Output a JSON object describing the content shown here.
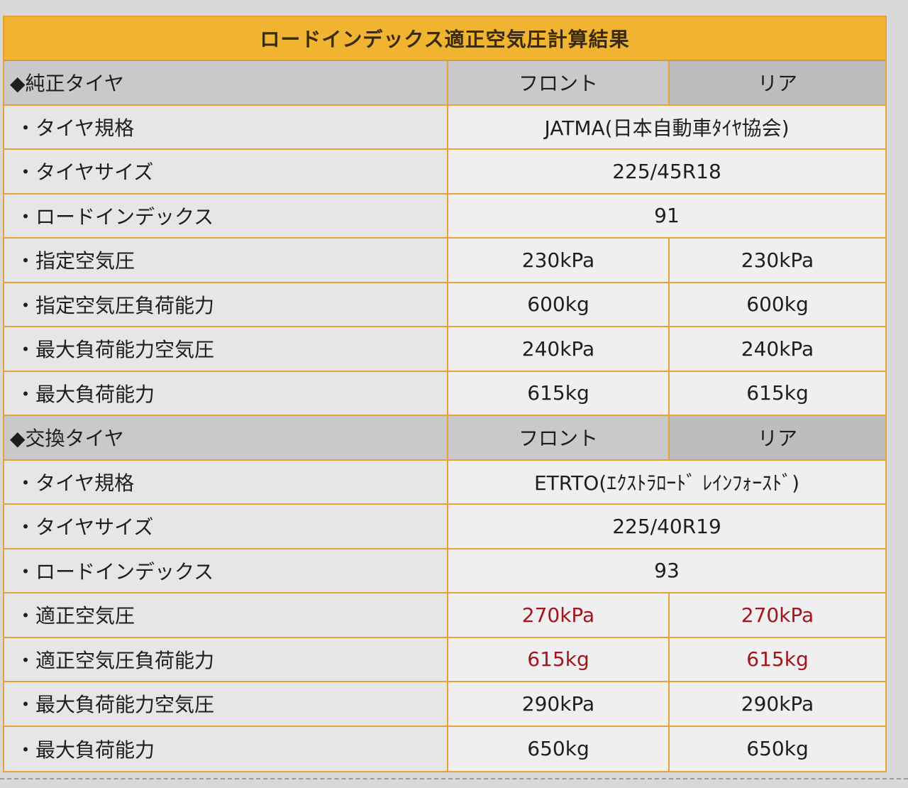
{
  "title": "ロードインデックス適正空気圧計算結果",
  "oem": {
    "header": "◆純正タイヤ",
    "front_label": "フロント",
    "rear_label": "リア",
    "rows": [
      {
        "label": "・タイヤ規格",
        "value": "JATMA(日本自動車ﾀｲﾔ協会)"
      },
      {
        "label": "・タイヤサイズ",
        "value": "225/45R18"
      },
      {
        "label": "・ロードインデックス",
        "value": "91"
      },
      {
        "label": "・指定空気圧",
        "front": "230kPa",
        "rear": "230kPa"
      },
      {
        "label": "・指定空気圧負荷能力",
        "front": "600kg",
        "rear": "600kg"
      },
      {
        "label": "・最大負荷能力空気圧",
        "front": "240kPa",
        "rear": "240kPa"
      },
      {
        "label": "・最大負荷能力",
        "front": "615kg",
        "rear": "615kg"
      }
    ]
  },
  "replacement": {
    "header": "◆交換タイヤ",
    "front_label": "フロント",
    "rear_label": "リア",
    "rows": [
      {
        "label": "・タイヤ規格",
        "value": "ETRTO(ｴｸｽﾄﾗﾛｰﾄﾞ ﾚｲﾝﾌｫｰｽﾄﾞ)"
      },
      {
        "label": "・タイヤサイズ",
        "value": "225/40R19"
      },
      {
        "label": "・ロードインデックス",
        "value": "93"
      },
      {
        "label": "・適正空気圧",
        "front": "270kPa",
        "rear": "270kPa"
      },
      {
        "label": "・適正空気圧負荷能力",
        "front": "615kg",
        "rear": "615kg"
      },
      {
        "label": "・最大負荷能力空気圧",
        "front": "290kPa",
        "rear": "290kPa"
      },
      {
        "label": "・最大負荷能力",
        "front": "650kg",
        "rear": "650kg"
      }
    ]
  },
  "colors": {
    "accent": "#f0b431",
    "border": "#e3a23a",
    "highlight_text": "#a3151d"
  }
}
